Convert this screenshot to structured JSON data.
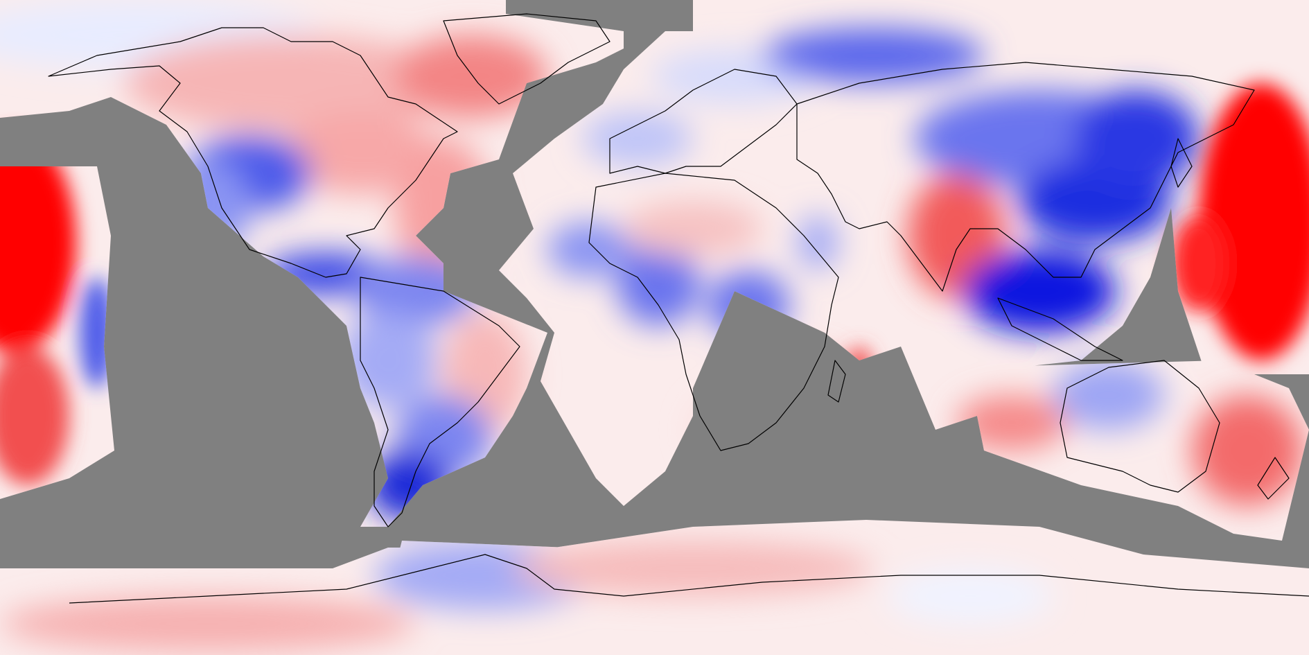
{
  "map": {
    "projection": "equirectangular",
    "extent": {
      "lon": [
        -180,
        180
      ],
      "lat": [
        -90,
        90
      ]
    },
    "mask_color": "#808080",
    "coastline_color": "#000000",
    "colormap": {
      "type": "diverging",
      "negative_color": "#0000ff",
      "neutral_color": "#ffffff",
      "positive_color": "#ff0000",
      "strongest_negative_color": "#00008b"
    },
    "legend": null,
    "title": ""
  }
}
